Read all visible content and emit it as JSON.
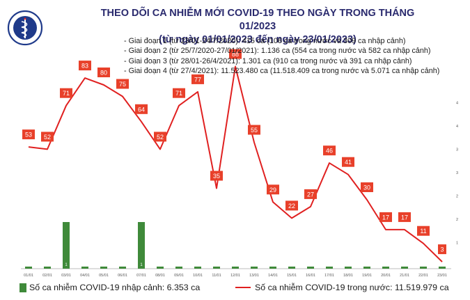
{
  "header": {
    "title_line1": "THEO DÕI CA NHIỄM MỚI COVID-19 THEO NGÀY TRONG THÁNG 01/2023",
    "title_line2": "(từ ngày 01/01/2023 đến ngày 23/01/2023)"
  },
  "logo": {
    "top_text": "BỘ Y TẾ",
    "bottom_text": "MINISTRY OF HEALTH"
  },
  "info_lines": [
    "- Giai đoạn 1 (từ 23/01-24/7/2020): 415 ca (106 ca trong nước và 309 ca nhập cảnh)",
    "- Giai đoạn 2 (từ 25/7/2020-27/01/2021): 1.136 ca (554 ca trong nước và 582 ca nhập cảnh)",
    "- Giai đoạn 3 (từ 28/01-26/4/2021): 1.301 ca (910 ca trong nước và 391 ca nhập cảnh)",
    "- Giai đoạn 4 (từ 27/4/2021): 11.523.480 ca (11.518.409 ca trong nước và 5.071 ca nhập cảnh)"
  ],
  "legend": {
    "imported_label": "Số ca nhiễm COVID-19 nhập cảnh: 6.353 ca",
    "domestic_label": "Số ca nhiễm COVID-19 trong nước: 11.519.979 ca"
  },
  "colors": {
    "bar": "#3f8a3a",
    "line": "#e02020",
    "label_box": "#e8402a",
    "title": "#2a2a6e",
    "logo": "#1f3a8a"
  },
  "chart_data": {
    "type": "bar+line",
    "categories": [
      "01/01",
      "02/01",
      "03/01",
      "04/01",
      "05/01",
      "06/01",
      "07/01",
      "08/01",
      "09/01",
      "10/01",
      "11/01",
      "12/01",
      "13/01",
      "14/01",
      "15/01",
      "16/01",
      "17/01",
      "18/01",
      "19/01",
      "20/01",
      "21/01",
      "22/01",
      "23/01"
    ],
    "series": [
      {
        "name": "Số ca nhiễm COVID-19 nhập cảnh: 6.353 ca",
        "type": "bar",
        "values": [
          0,
          0,
          1,
          0,
          0,
          0,
          1,
          0,
          0,
          0,
          0,
          0,
          0,
          0,
          0,
          0,
          0,
          0,
          0,
          0,
          0,
          0,
          0
        ]
      },
      {
        "name": "Số ca nhiễm COVID-19 trong nước: 11.519.979 ca",
        "type": "line",
        "values": [
          53,
          52,
          71,
          83,
          80,
          75,
          64,
          52,
          71,
          77,
          35,
          88,
          55,
          29,
          22,
          27,
          46,
          41,
          30,
          17,
          17,
          11,
          3
        ]
      }
    ],
    "right_axis_ticks": [
      "",
      "1",
      "2",
      "2",
      "3",
      "3",
      "4",
      "4"
    ],
    "bar_ylim": [
      0,
      5
    ],
    "line_ylim": [
      0,
      100
    ],
    "grid": false,
    "legend_position": "bottom"
  }
}
